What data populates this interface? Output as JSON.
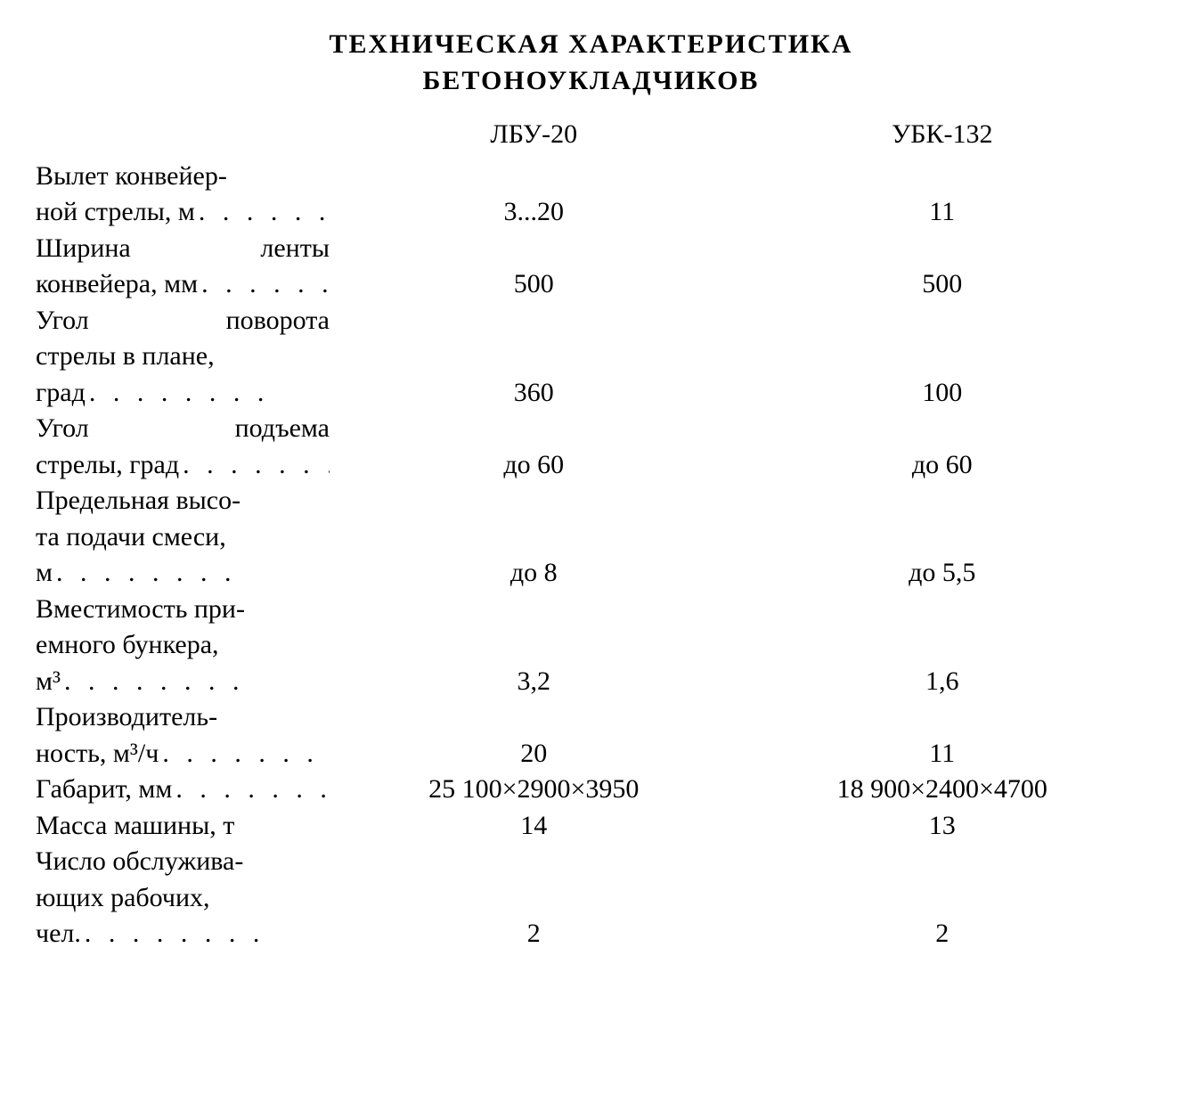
{
  "title_line1": "ТЕХНИЧЕСКАЯ ХАРАКТЕРИСТИКА",
  "title_line2": "БЕТОНОУКЛАДЧИКОВ",
  "columns": {
    "col1": "ЛБУ-20",
    "col2": "УБК-132"
  },
  "rows": [
    {
      "pre": [
        "Вылет конвейер-"
      ],
      "last": "ной стрелы, м",
      "c1": "3...20",
      "c2": "11"
    },
    {
      "pre": [
        "Ширина    ленты"
      ],
      "last": "конвейера, мм",
      "c1": "500",
      "c2": "500"
    },
    {
      "pre": [
        "Угол    поворота",
        "стрелы в плане,"
      ],
      "last": "град",
      "c1": "360",
      "c2": "100"
    },
    {
      "pre": [
        "Угол    подъема"
      ],
      "last": "стрелы, град",
      "c1": "до 60",
      "c2": "до 60"
    },
    {
      "pre": [
        "Предельная высо-",
        "та подачи смеси,"
      ],
      "last": "м",
      "c1": "до 8",
      "c2": "до 5,5"
    },
    {
      "pre": [
        "Вместимость при-",
        "емного бункера,"
      ],
      "last": "м³",
      "c1": "3,2",
      "c2": "1,6"
    },
    {
      "pre": [
        "Производитель-"
      ],
      "last": "ность, м³/ч",
      "c1": "20",
      "c2": "11"
    },
    {
      "pre": [],
      "last": "Габарит, мм",
      "c1": "25 100×2900×3950",
      "c2": "18 900×2400×4700"
    },
    {
      "pre": [],
      "last": "Масса машины, т",
      "c1": "14",
      "c2": "13",
      "nodots": true
    },
    {
      "pre": [
        "Число обслужива-",
        "ющих рабочих,"
      ],
      "last": "чел.",
      "c1": "2",
      "c2": "2"
    }
  ],
  "dots_filler": ". . . . . . . ."
}
